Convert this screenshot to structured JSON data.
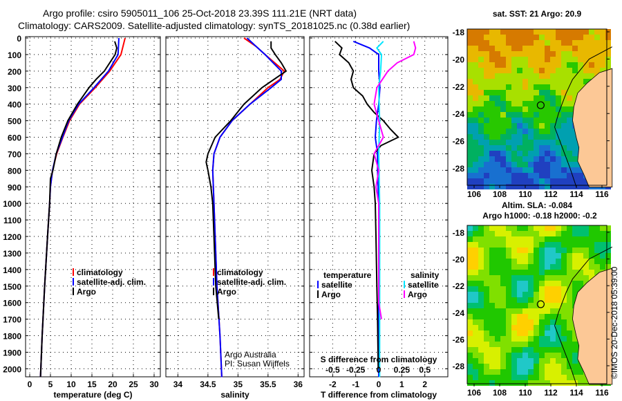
{
  "title_line1": "Argo profile: csiro 5905011_106 25-Oct-2018 23.39S 111.21E (NRT data)",
  "title_line2": "Climatology: CARS2009. Satellite-adjusted climatology: synTS_20181025.nc (0.38d earlier)",
  "colors": {
    "climatology": "#ff0000",
    "satellite": "#0000ff",
    "argo": "#000000",
    "sat_salinity": "#00e5ff",
    "argo_salinity": "#ff00ff"
  },
  "chart_data": [
    {
      "type": "line",
      "name": "temperature",
      "xlabel": "temperature (deg C)",
      "xlim": [
        -1,
        31.5
      ],
      "ylim": [
        2060,
        0
      ],
      "xticks": [
        0,
        5,
        10,
        15,
        20,
        25,
        30
      ],
      "yticks": [
        0,
        100,
        200,
        300,
        400,
        500,
        600,
        700,
        800,
        900,
        1000,
        1100,
        1200,
        1300,
        1400,
        1500,
        1600,
        1700,
        1800,
        1900,
        2000
      ],
      "legend": [
        "climatology",
        "satellite-adj. clim.",
        "Argo"
      ],
      "series": [
        {
          "name": "climatology",
          "color": "#ff0000",
          "points": [
            [
              0,
              23
            ],
            [
              100,
              22
            ],
            [
              200,
              19.3
            ],
            [
              300,
              15.8
            ],
            [
              400,
              12
            ],
            [
              500,
              9.6
            ],
            [
              600,
              8
            ],
            [
              700,
              6.5
            ],
            [
              800,
              5.5
            ],
            [
              900,
              5
            ],
            [
              1000,
              4.8
            ],
            [
              1200,
              4.3
            ],
            [
              1500,
              3.6
            ],
            [
              1800,
              3
            ],
            [
              2050,
              2.6
            ]
          ]
        },
        {
          "name": "satellite-adj. clim.",
          "color": "#0000ff",
          "points": [
            [
              0,
              21.5
            ],
            [
              100,
              21.3
            ],
            [
              200,
              19
            ],
            [
              300,
              15.5
            ],
            [
              400,
              11.8
            ],
            [
              500,
              9.4
            ],
            [
              600,
              7.9
            ],
            [
              700,
              6.4
            ],
            [
              800,
              5.5
            ],
            [
              900,
              5
            ],
            [
              1000,
              4.8
            ],
            [
              1200,
              4.3
            ],
            [
              1500,
              3.6
            ],
            [
              1800,
              3
            ],
            [
              2050,
              2.6
            ]
          ]
        },
        {
          "name": "Argo",
          "color": "#000000",
          "points": [
            [
              20,
              20.5
            ],
            [
              60,
              21
            ],
            [
              100,
              20.6
            ],
            [
              200,
              18
            ],
            [
              250,
              16
            ],
            [
              300,
              14.3
            ],
            [
              400,
              11.5
            ],
            [
              500,
              9.2
            ],
            [
              600,
              7.6
            ],
            [
              700,
              6.4
            ],
            [
              800,
              5.6
            ],
            [
              850,
              5
            ],
            [
              1000,
              4.8
            ],
            [
              1200,
              4.3
            ],
            [
              1500,
              3.6
            ],
            [
              1800,
              3
            ],
            [
              2050,
              2.6
            ]
          ]
        }
      ]
    },
    {
      "type": "line",
      "name": "salinity",
      "xlabel": "salinity",
      "xlim": [
        33.8,
        36.1
      ],
      "ylim": [
        2060,
        0
      ],
      "xticks": [
        34,
        34.5,
        35,
        35.5,
        36
      ],
      "legend": [
        "climatology",
        "satellite-adj. clim.",
        "Argo"
      ],
      "annotation": [
        "Argo Australia",
        "PI: Susan Wijffels"
      ],
      "series": [
        {
          "name": "climatology",
          "color": "#ff0000",
          "points": [
            [
              0,
              35.1
            ],
            [
              50,
              35.3
            ],
            [
              100,
              35.45
            ],
            [
              200,
              35.77
            ],
            [
              250,
              35.7
            ],
            [
              300,
              35.5
            ],
            [
              400,
              35.2
            ],
            [
              500,
              34.9
            ],
            [
              600,
              34.7
            ],
            [
              700,
              34.6
            ],
            [
              800,
              34.58
            ],
            [
              1000,
              34.6
            ],
            [
              1200,
              34.62
            ],
            [
              1500,
              34.65
            ],
            [
              1800,
              34.7
            ],
            [
              2050,
              34.73
            ]
          ]
        },
        {
          "name": "satellite-adj. clim.",
          "color": "#0000ff",
          "points": [
            [
              0,
              35.15
            ],
            [
              50,
              35.3
            ],
            [
              100,
              35.45
            ],
            [
              200,
              35.72
            ],
            [
              250,
              35.72
            ],
            [
              300,
              35.55
            ],
            [
              400,
              35.2
            ],
            [
              500,
              34.9
            ],
            [
              600,
              34.7
            ],
            [
              700,
              34.6
            ],
            [
              800,
              34.58
            ],
            [
              1000,
              34.6
            ],
            [
              1200,
              34.62
            ],
            [
              1500,
              34.65
            ],
            [
              1800,
              34.7
            ],
            [
              2050,
              34.73
            ]
          ]
        },
        {
          "name": "Argo",
          "color": "#000000",
          "points": [
            [
              20,
              35.55
            ],
            [
              60,
              35.55
            ],
            [
              100,
              35.62
            ],
            [
              150,
              35.72
            ],
            [
              200,
              35.8
            ],
            [
              300,
              35.4
            ],
            [
              400,
              35.1
            ],
            [
              500,
              34.88
            ],
            [
              600,
              34.62
            ],
            [
              700,
              34.5
            ],
            [
              750,
              34.47
            ],
            [
              800,
              34.5
            ],
            [
              900,
              34.55
            ],
            [
              1000,
              34.58
            ],
            [
              1200,
              34.6
            ],
            [
              1500,
              34.63
            ],
            [
              1700,
              34.68
            ]
          ]
        }
      ]
    },
    {
      "type": "line",
      "name": "difference",
      "xlabel": "T difference from climatology",
      "xlabel2": "S difference from climatology",
      "xlim": [
        -3,
        3
      ],
      "s_xlim": [
        -0.75,
        0.75
      ],
      "ylim": [
        2060,
        0
      ],
      "xticks": [
        -2,
        -1,
        0,
        1,
        2
      ],
      "s_xticks": [
        "-0.5",
        "-0.25",
        "0",
        "0.25",
        "0.5"
      ],
      "s_xtick_values": [
        -0.5,
        -0.25,
        0,
        0.25,
        0.5
      ],
      "legend_temperature": {
        "title": "temperature",
        "items": [
          "satellite",
          "Argo"
        ]
      },
      "legend_salinity": {
        "title": "salinity",
        "items": [
          "satellite",
          "Argo"
        ]
      },
      "series": [
        {
          "name": "T satellite",
          "axis": "T",
          "color": "#0000ff",
          "points": [
            [
              20,
              -1.1
            ],
            [
              60,
              -0.4
            ],
            [
              100,
              0
            ],
            [
              200,
              0
            ],
            [
              300,
              0.05
            ],
            [
              400,
              0
            ],
            [
              500,
              -0.1
            ],
            [
              600,
              -0.15
            ],
            [
              700,
              -0.05
            ],
            [
              800,
              -0.05
            ],
            [
              1000,
              0
            ],
            [
              2050,
              0
            ]
          ]
        },
        {
          "name": "T Argo",
          "axis": "T",
          "color": "#000000",
          "points": [
            [
              20,
              -1.9
            ],
            [
              60,
              -1.6
            ],
            [
              100,
              -1.7
            ],
            [
              150,
              -1.3
            ],
            [
              200,
              -1.1
            ],
            [
              250,
              -1.2
            ],
            [
              300,
              -1.1
            ],
            [
              350,
              -0.7
            ],
            [
              400,
              -0.5
            ],
            [
              450,
              -0.2
            ],
            [
              500,
              0.2
            ],
            [
              550,
              0.5
            ],
            [
              600,
              0.85
            ],
            [
              650,
              0.1
            ],
            [
              700,
              -0.2
            ],
            [
              800,
              -0.3
            ],
            [
              900,
              -0.2
            ],
            [
              1000,
              -0.15
            ],
            [
              1200,
              -0.12
            ],
            [
              1500,
              -0.08
            ],
            [
              1700,
              -0.05
            ],
            [
              2000,
              -0.02
            ]
          ]
        },
        {
          "name": "S satellite",
          "axis": "S",
          "color": "#00e5ff",
          "points": [
            [
              20,
              0.05
            ],
            [
              60,
              -0.02
            ],
            [
              100,
              0.03
            ],
            [
              200,
              0.02
            ],
            [
              300,
              0
            ],
            [
              500,
              0.01
            ],
            [
              700,
              0
            ],
            [
              1000,
              0.01
            ],
            [
              2050,
              0.01
            ]
          ]
        },
        {
          "name": "S Argo",
          "axis": "S",
          "color": "#ff00ff",
          "points": [
            [
              20,
              0.38
            ],
            [
              60,
              0.4
            ],
            [
              100,
              0.38
            ],
            [
              150,
              0.2
            ],
            [
              200,
              0.1
            ],
            [
              300,
              -0.02
            ],
            [
              400,
              -0.05
            ],
            [
              500,
              0
            ],
            [
              600,
              0.05
            ],
            [
              700,
              -0.05
            ],
            [
              800,
              0
            ],
            [
              900,
              -0.03
            ],
            [
              1000,
              0
            ],
            [
              1600,
              0
            ],
            [
              1700,
              0.03
            ]
          ]
        }
      ]
    }
  ],
  "maps": [
    {
      "name": "sst",
      "title1": "sat. SST: 21 Argo: 20.9",
      "title2": "",
      "lat_ticks": [
        "-18",
        "-20",
        "-22",
        "-24",
        "-26",
        "-28"
      ],
      "lon_ticks": [
        "106",
        "108",
        "110",
        "112",
        "114",
        "116"
      ],
      "argo_lat": -23.39,
      "argo_lon": 111.21
    },
    {
      "name": "sla",
      "title1": "Altim. SLA: -0.084",
      "title2": "Argo h1000: -0.18 h2000: -0.2",
      "lat_ticks": [
        "-18",
        "-20",
        "-22",
        "-24",
        "-26",
        "-28"
      ],
      "lon_ticks": [
        "106",
        "108",
        "110",
        "112",
        "114",
        "116"
      ],
      "argo_lat": -23.39,
      "argo_lon": 111.21
    }
  ],
  "credit": "©IMOS 20-Dec-2018 05:39:00"
}
